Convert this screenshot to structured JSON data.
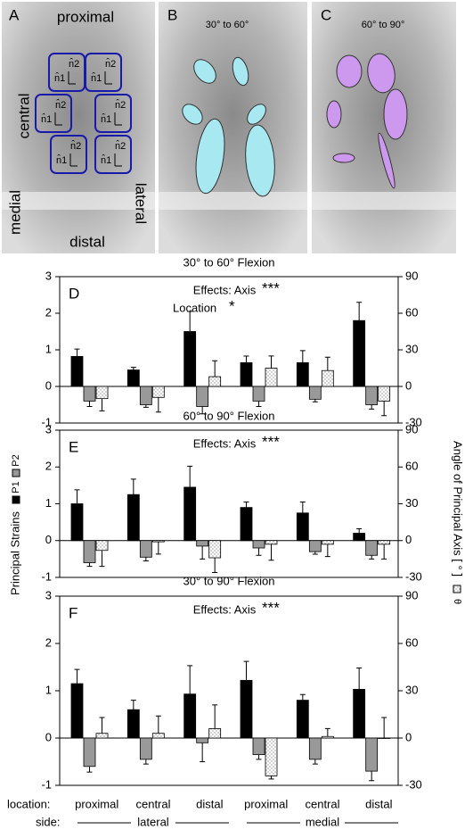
{
  "panels": {
    "A": {
      "letter": "A",
      "proximal": "proximal",
      "central": "central",
      "medial": "medial",
      "lateral": "lateral",
      "distal": "distal",
      "n1": "n̂1",
      "n2": "n̂2"
    },
    "B": {
      "letter": "B",
      "caption": "30° to 60°"
    },
    "C": {
      "letter": "C",
      "caption": "60° to 90°"
    }
  },
  "shared": {
    "y_label": "Principal Strains",
    "y2_label": "Angle of Principal Axis [ ° ]",
    "location_label": "location:",
    "side_label": "side:",
    "categories": [
      "proximal",
      "central",
      "distal",
      "proximal",
      "central",
      "distal"
    ],
    "sides": [
      "lateral",
      "medial"
    ]
  },
  "chart_data": [
    {
      "type": "bar",
      "panel": "D",
      "title": "30° to 60° Flexion",
      "annotations": [
        {
          "text": "Effects: Axis",
          "stars": "***"
        },
        {
          "text": "Location",
          "stars": "*"
        }
      ],
      "ylim": [
        -1,
        3
      ],
      "yticks": [
        -1,
        0,
        1,
        2,
        3
      ],
      "y2lim": [
        -30,
        90
      ],
      "y2ticks": [
        -30,
        0,
        30,
        60,
        90
      ],
      "series": [
        {
          "name": "P1",
          "color": "#000000",
          "values": [
            0.82,
            0.45,
            1.5,
            0.65,
            0.65,
            1.8
          ],
          "errors": [
            0.2,
            0.07,
            0.55,
            0.18,
            0.33,
            0.5
          ]
        },
        {
          "name": "P2",
          "color": "#999999",
          "values": [
            -0.4,
            -0.5,
            -0.55,
            -0.4,
            -0.35,
            -0.5
          ],
          "errors": [
            0.15,
            0.07,
            0.2,
            0.15,
            0.07,
            0.12
          ]
        },
        {
          "name": "θ",
          "color": "#ffffff",
          "axis": "y2",
          "values": [
            -10,
            -9,
            8,
            15,
            13,
            -12
          ],
          "errors": [
            10,
            12,
            13,
            10,
            11,
            12
          ]
        }
      ]
    },
    {
      "type": "bar",
      "panel": "E",
      "title": "60° to 90° Flexion",
      "annotations": [
        {
          "text": "Effects: Axis",
          "stars": "***"
        }
      ],
      "ylim": [
        -1,
        3
      ],
      "yticks": [
        -1,
        0,
        1,
        2,
        3
      ],
      "y2lim": [
        -30,
        90
      ],
      "y2ticks": [
        -30,
        0,
        30,
        60,
        90
      ],
      "series": [
        {
          "name": "P1",
          "color": "#000000",
          "values": [
            1.0,
            1.25,
            1.45,
            0.9,
            0.75,
            0.2
          ],
          "errors": [
            0.38,
            0.42,
            0.57,
            0.15,
            0.3,
            0.12
          ]
        },
        {
          "name": "P2",
          "color": "#999999",
          "values": [
            -0.6,
            -0.45,
            -0.15,
            -0.2,
            -0.3,
            -0.4
          ],
          "errors": [
            0.1,
            0.1,
            0.35,
            0.2,
            0.07,
            0.1
          ]
        },
        {
          "name": "θ",
          "color": "#ffffff",
          "axis": "y2",
          "values": [
            -8,
            -1,
            -14,
            -3,
            -3,
            -3
          ],
          "errors": [
            13,
            10,
            12,
            13,
            10,
            12
          ]
        }
      ]
    },
    {
      "type": "bar",
      "panel": "F",
      "title": "30° to 90° Flexion",
      "annotations": [
        {
          "text": "Effects: Axis",
          "stars": "***"
        }
      ],
      "ylim": [
        -1,
        3
      ],
      "yticks": [
        -1,
        0,
        1,
        2,
        3
      ],
      "y2lim": [
        -30,
        90
      ],
      "y2ticks": [
        -30,
        0,
        30,
        60,
        90
      ],
      "series": [
        {
          "name": "P1",
          "color": "#000000",
          "values": [
            1.15,
            0.6,
            0.93,
            1.22,
            0.8,
            1.03
          ],
          "errors": [
            0.3,
            0.2,
            0.6,
            0.4,
            0.12,
            0.45
          ]
        },
        {
          "name": "P2",
          "color": "#999999",
          "values": [
            -0.6,
            -0.45,
            -0.1,
            -0.35,
            -0.45,
            -0.7
          ],
          "errors": [
            0.12,
            0.1,
            0.4,
            0.1,
            0.1,
            0.2
          ]
        },
        {
          "name": "θ",
          "color": "#ffffff",
          "axis": "y2",
          "values": [
            3,
            3,
            6,
            -24,
            1,
            0
          ],
          "errors": [
            10,
            11,
            15,
            2,
            5,
            13
          ]
        }
      ]
    }
  ]
}
